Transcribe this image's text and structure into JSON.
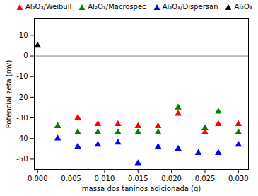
{
  "chart_data": {
    "type": "scatter",
    "xlabel": "massa dos taninos adicionada (g)",
    "ylabel": "Potencial zeta (mv)",
    "xlim": [
      -0.0005,
      0.0315
    ],
    "ylim": [
      -55,
      18
    ],
    "xticks": [
      {
        "value": 0.0,
        "label": "0.000"
      },
      {
        "value": 0.005,
        "label": "0.005"
      },
      {
        "value": 0.01,
        "label": "0.010"
      },
      {
        "value": 0.015,
        "label": "0.015"
      },
      {
        "value": 0.02,
        "label": "0.020"
      },
      {
        "value": 0.025,
        "label": "0.025"
      },
      {
        "value": 0.03,
        "label": "0.030"
      }
    ],
    "yticks": [
      -50,
      -40,
      -30,
      -20,
      -10,
      0,
      10
    ],
    "hline_y": 0,
    "grid": false,
    "legend": "upper right",
    "marker": "triangle",
    "series": [
      {
        "name": "Al₂O₃/Weibull",
        "color": "red",
        "x": [
          0.003,
          0.006,
          0.009,
          0.012,
          0.015,
          0.018,
          0.021,
          0.025,
          0.027,
          0.03
        ],
        "values": [
          -34,
          -30,
          -33,
          -33,
          -34,
          -34,
          -28,
          -37,
          -33,
          -33
        ]
      },
      {
        "name": "Al₂O₃/Macrospec",
        "color": "green",
        "x": [
          0.003,
          0.006,
          0.009,
          0.012,
          0.015,
          0.018,
          0.021,
          0.025,
          0.027,
          0.03
        ],
        "values": [
          -34,
          -37,
          -37,
          -37,
          -37,
          -37,
          -25,
          -35,
          -27,
          -37
        ]
      },
      {
        "name": "Al₂O₃/Dispersan",
        "color": "blue",
        "x": [
          0.003,
          0.006,
          0.009,
          0.012,
          0.015,
          0.018,
          0.021,
          0.024,
          0.027,
          0.03
        ],
        "values": [
          -40,
          -44,
          -43,
          -42,
          -52,
          -44,
          -45,
          -47,
          -47,
          -43
        ]
      },
      {
        "name": "Al₂O₃",
        "color": "black",
        "x": [
          0.0
        ],
        "values": [
          5
        ]
      }
    ]
  }
}
